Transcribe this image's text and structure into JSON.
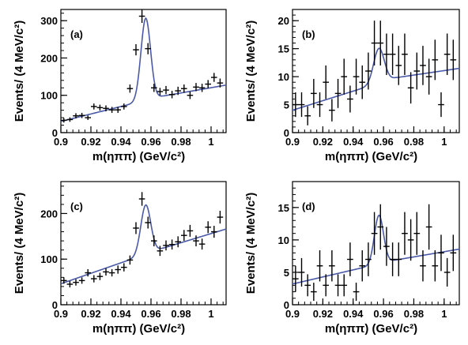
{
  "figure": {
    "xlabel": "m(ηππ) (GeV/c²)",
    "ylabel": "Events/ (4 MeV/c²)"
  },
  "chart_data": [
    {
      "type": "scatter",
      "panel": "(a)",
      "xlabel": "m(ηππ) (GeV/c²)",
      "ylabel": "Events/ (4 MeV/c²)",
      "xlim": [
        0.9,
        1.01
      ],
      "ylim": [
        0,
        330
      ],
      "xticks": [
        0.9,
        0.92,
        0.94,
        0.96,
        0.98,
        1
      ],
      "xtick_labels": [
        "0.9",
        "0.92",
        "0.94",
        "0.96",
        "0.98",
        "1"
      ],
      "yticks": [
        0,
        100,
        200,
        300
      ],
      "ytick_labels": [
        "0",
        "100",
        "200",
        "300"
      ],
      "bin_width": 0.004,
      "points": [
        {
          "x": 0.902,
          "y": 33,
          "err": 6
        },
        {
          "x": 0.906,
          "y": 35,
          "err": 6
        },
        {
          "x": 0.91,
          "y": 45,
          "err": 7
        },
        {
          "x": 0.914,
          "y": 46,
          "err": 7
        },
        {
          "x": 0.918,
          "y": 40,
          "err": 6
        },
        {
          "x": 0.922,
          "y": 70,
          "err": 8
        },
        {
          "x": 0.926,
          "y": 67,
          "err": 8
        },
        {
          "x": 0.93,
          "y": 65,
          "err": 8
        },
        {
          "x": 0.934,
          "y": 61,
          "err": 8
        },
        {
          "x": 0.938,
          "y": 61,
          "err": 8
        },
        {
          "x": 0.942,
          "y": 70,
          "err": 8
        },
        {
          "x": 0.946,
          "y": 118,
          "err": 11
        },
        {
          "x": 0.95,
          "y": 222,
          "err": 15
        },
        {
          "x": 0.954,
          "y": 312,
          "err": 18
        },
        {
          "x": 0.958,
          "y": 225,
          "err": 15
        },
        {
          "x": 0.962,
          "y": 120,
          "err": 11
        },
        {
          "x": 0.966,
          "y": 110,
          "err": 10
        },
        {
          "x": 0.97,
          "y": 114,
          "err": 11
        },
        {
          "x": 0.974,
          "y": 102,
          "err": 10
        },
        {
          "x": 0.978,
          "y": 112,
          "err": 11
        },
        {
          "x": 0.982,
          "y": 118,
          "err": 11
        },
        {
          "x": 0.986,
          "y": 100,
          "err": 10
        },
        {
          "x": 0.99,
          "y": 122,
          "err": 11
        },
        {
          "x": 0.994,
          "y": 120,
          "err": 11
        },
        {
          "x": 0.998,
          "y": 130,
          "err": 11
        },
        {
          "x": 1.002,
          "y": 148,
          "err": 12
        },
        {
          "x": 1.006,
          "y": 133,
          "err": 12
        }
      ],
      "fit": {
        "baseline": [
          30,
          98,
          0.968
        ],
        "baseline_slope2": 700,
        "peak_amp": 220,
        "peak_mean": 0.9565,
        "peak_sigma": 0.0032
      }
    },
    {
      "type": "scatter",
      "panel": "(b)",
      "xlabel": "m(ηππ) (GeV/c²)",
      "ylabel": "Events/ (4 MeV/c²)",
      "xlim": [
        0.9,
        1.01
      ],
      "ylim": [
        0,
        22
      ],
      "xticks": [
        0.9,
        0.92,
        0.94,
        0.96,
        0.98,
        1
      ],
      "xtick_labels": [
        "0.9",
        "0.92",
        "0.94",
        "0.96",
        "0.98",
        "1"
      ],
      "yticks": [
        0,
        5,
        10,
        15,
        20
      ],
      "ytick_labels": [
        "0",
        "5",
        "10",
        "15",
        "20"
      ],
      "bin_width": 0.004,
      "points": [
        {
          "x": 0.902,
          "y": 5,
          "err": 2.2
        },
        {
          "x": 0.906,
          "y": 5,
          "err": 2.2
        },
        {
          "x": 0.91,
          "y": 3,
          "err": 1.7
        },
        {
          "x": 0.914,
          "y": 7,
          "err": 2.6
        },
        {
          "x": 0.918,
          "y": 5,
          "err": 2.2
        },
        {
          "x": 0.922,
          "y": 9,
          "err": 3.0
        },
        {
          "x": 0.926,
          "y": 4,
          "err": 2.0
        },
        {
          "x": 0.93,
          "y": 7,
          "err": 2.6
        },
        {
          "x": 0.934,
          "y": 10,
          "err": 3.2
        },
        {
          "x": 0.938,
          "y": 6,
          "err": 2.4
        },
        {
          "x": 0.942,
          "y": 10,
          "err": 3.2
        },
        {
          "x": 0.946,
          "y": 9,
          "err": 3.0
        },
        {
          "x": 0.95,
          "y": 11,
          "err": 3.3
        },
        {
          "x": 0.954,
          "y": 16,
          "err": 4.0
        },
        {
          "x": 0.958,
          "y": 16,
          "err": 4.0
        },
        {
          "x": 0.962,
          "y": 14,
          "err": 3.7
        },
        {
          "x": 0.966,
          "y": 14,
          "err": 3.7
        },
        {
          "x": 0.97,
          "y": 12,
          "err": 3.5
        },
        {
          "x": 0.974,
          "y": 14,
          "err": 3.7
        },
        {
          "x": 0.978,
          "y": 8,
          "err": 2.8
        },
        {
          "x": 0.982,
          "y": 11,
          "err": 3.3
        },
        {
          "x": 0.986,
          "y": 12,
          "err": 3.5
        },
        {
          "x": 0.99,
          "y": 10,
          "err": 3.2
        },
        {
          "x": 0.994,
          "y": 13,
          "err": 3.6
        },
        {
          "x": 0.998,
          "y": 5,
          "err": 2.2
        },
        {
          "x": 1.002,
          "y": 14,
          "err": 3.7
        },
        {
          "x": 1.006,
          "y": 13,
          "err": 3.6
        }
      ],
      "fit": {
        "baseline": [
          4,
          9.8,
          0.968
        ],
        "baseline_slope2": 40,
        "peak_amp": 6.2,
        "peak_mean": 0.957,
        "peak_sigma": 0.0035
      }
    },
    {
      "type": "scatter",
      "panel": "(c)",
      "xlabel": "m(ηππ) (GeV/c²)",
      "ylabel": "Events/ (4 MeV/c²)",
      "xlim": [
        0.9,
        1.01
      ],
      "ylim": [
        0,
        270
      ],
      "xticks": [
        0.9,
        0.92,
        0.94,
        0.96,
        0.98,
        1
      ],
      "xtick_labels": [
        "0.9",
        "0.92",
        "0.94",
        "0.96",
        "0.98",
        "1"
      ],
      "yticks": [
        0,
        100,
        200
      ],
      "ytick_labels": [
        "0",
        "100",
        "200"
      ],
      "bin_width": 0.004,
      "points": [
        {
          "x": 0.902,
          "y": 53,
          "err": 7
        },
        {
          "x": 0.906,
          "y": 45,
          "err": 7
        },
        {
          "x": 0.91,
          "y": 49,
          "err": 7
        },
        {
          "x": 0.914,
          "y": 53,
          "err": 7
        },
        {
          "x": 0.918,
          "y": 70,
          "err": 8
        },
        {
          "x": 0.922,
          "y": 57,
          "err": 8
        },
        {
          "x": 0.926,
          "y": 62,
          "err": 8
        },
        {
          "x": 0.93,
          "y": 72,
          "err": 8
        },
        {
          "x": 0.934,
          "y": 70,
          "err": 8
        },
        {
          "x": 0.938,
          "y": 77,
          "err": 9
        },
        {
          "x": 0.942,
          "y": 82,
          "err": 9
        },
        {
          "x": 0.946,
          "y": 98,
          "err": 10
        },
        {
          "x": 0.95,
          "y": 168,
          "err": 13
        },
        {
          "x": 0.954,
          "y": 232,
          "err": 15
        },
        {
          "x": 0.958,
          "y": 180,
          "err": 13
        },
        {
          "x": 0.962,
          "y": 140,
          "err": 12
        },
        {
          "x": 0.966,
          "y": 118,
          "err": 11
        },
        {
          "x": 0.97,
          "y": 130,
          "err": 11
        },
        {
          "x": 0.974,
          "y": 132,
          "err": 11
        },
        {
          "x": 0.978,
          "y": 138,
          "err": 12
        },
        {
          "x": 0.982,
          "y": 152,
          "err": 12
        },
        {
          "x": 0.986,
          "y": 162,
          "err": 13
        },
        {
          "x": 0.99,
          "y": 140,
          "err": 12
        },
        {
          "x": 0.994,
          "y": 133,
          "err": 12
        },
        {
          "x": 0.998,
          "y": 170,
          "err": 13
        },
        {
          "x": 1.002,
          "y": 160,
          "err": 13
        },
        {
          "x": 1.006,
          "y": 192,
          "err": 14
        }
      ],
      "fit": {
        "baseline": [
          46,
          124,
          0.968
        ],
        "baseline_slope2": 1000,
        "peak_amp": 108,
        "peak_mean": 0.9565,
        "peak_sigma": 0.0033
      }
    },
    {
      "type": "scatter",
      "panel": "(d)",
      "xlabel": "m(ηππ) (GeV/c²)",
      "ylabel": "Events/ (4 MeV/c²)",
      "xlim": [
        0.9,
        1.01
      ],
      "ylim": [
        0,
        19
      ],
      "xticks": [
        0.9,
        0.92,
        0.94,
        0.96,
        0.98,
        1
      ],
      "xtick_labels": [
        "0.9",
        "0.92",
        "0.94",
        "0.96",
        "0.98",
        "1"
      ],
      "yticks": [
        0,
        5,
        10,
        15
      ],
      "ytick_labels": [
        "0",
        "5",
        "10",
        "15"
      ],
      "bin_width": 0.004,
      "points": [
        {
          "x": 0.902,
          "y": 4,
          "err": 2.0
        },
        {
          "x": 0.906,
          "y": 5,
          "err": 2.2
        },
        {
          "x": 0.91,
          "y": 3,
          "err": 1.7
        },
        {
          "x": 0.914,
          "y": 2,
          "err": 1.4
        },
        {
          "x": 0.918,
          "y": 6,
          "err": 2.4
        },
        {
          "x": 0.922,
          "y": 3,
          "err": 1.7
        },
        {
          "x": 0.926,
          "y": 6,
          "err": 2.4
        },
        {
          "x": 0.93,
          "y": 3,
          "err": 1.7
        },
        {
          "x": 0.934,
          "y": 3,
          "err": 1.7
        },
        {
          "x": 0.938,
          "y": 7,
          "err": 2.6
        },
        {
          "x": 0.942,
          "y": 2,
          "err": 1.4
        },
        {
          "x": 0.946,
          "y": 6,
          "err": 2.4
        },
        {
          "x": 0.95,
          "y": 7,
          "err": 2.6
        },
        {
          "x": 0.954,
          "y": 11,
          "err": 3.3
        },
        {
          "x": 0.958,
          "y": 12,
          "err": 3.5
        },
        {
          "x": 0.962,
          "y": 9,
          "err": 3.0
        },
        {
          "x": 0.966,
          "y": 7,
          "err": 2.6
        },
        {
          "x": 0.97,
          "y": 7,
          "err": 2.6
        },
        {
          "x": 0.974,
          "y": 11,
          "err": 3.3
        },
        {
          "x": 0.978,
          "y": 10,
          "err": 3.2
        },
        {
          "x": 0.982,
          "y": 11,
          "err": 3.3
        },
        {
          "x": 0.986,
          "y": 6,
          "err": 2.4
        },
        {
          "x": 0.99,
          "y": 12,
          "err": 3.5
        },
        {
          "x": 0.994,
          "y": 6,
          "err": 2.4
        },
        {
          "x": 0.998,
          "y": 8,
          "err": 2.8
        },
        {
          "x": 1.002,
          "y": 5,
          "err": 2.2
        },
        {
          "x": 1.006,
          "y": 8,
          "err": 2.8
        }
      ],
      "fit": {
        "baseline": [
          3.2,
          6.9,
          0.968
        ],
        "baseline_slope2": 40,
        "peak_amp": 7.5,
        "peak_mean": 0.957,
        "peak_sigma": 0.003
      }
    }
  ]
}
